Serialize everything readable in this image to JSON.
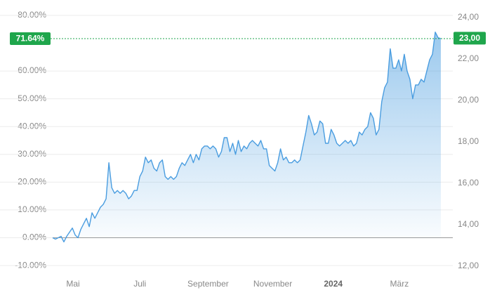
{
  "chart_data": {
    "type": "line",
    "series": [
      {
        "color": "#4a9de0",
        "values": [
          0,
          -0.5,
          0,
          0.5,
          -1.5,
          0.5,
          2,
          3.5,
          1,
          0,
          3,
          5,
          7,
          4,
          9,
          7,
          9,
          11,
          12,
          14,
          27,
          18,
          16,
          17,
          16,
          17,
          16,
          14,
          15,
          17,
          17,
          22,
          24,
          29,
          27,
          28,
          25,
          24,
          27,
          28,
          22,
          21,
          22,
          21,
          22,
          25,
          27,
          26,
          28,
          30,
          27,
          30,
          28,
          32,
          33,
          33,
          32,
          33,
          32,
          29,
          31,
          36,
          36,
          31,
          34,
          30,
          35,
          31,
          33,
          32,
          34,
          35,
          34,
          33,
          35,
          32,
          32,
          26,
          25,
          24,
          27,
          32,
          28,
          29,
          27,
          27,
          28,
          27,
          28,
          33,
          38,
          44,
          41,
          37,
          38,
          42,
          41,
          34,
          34,
          39,
          37,
          34,
          33,
          34,
          35,
          34,
          35,
          33,
          34,
          38,
          37,
          39,
          40,
          45,
          43,
          37,
          39,
          49,
          54,
          56,
          68,
          61,
          61,
          64,
          60,
          66,
          60,
          57,
          50,
          55,
          55,
          57,
          56,
          60,
          64,
          66,
          74,
          72,
          71.64
        ]
      }
    ],
    "xlim": [
      0,
      138
    ],
    "xticks": [
      {
        "value": 7.25,
        "label": "Mai"
      },
      {
        "value": 31,
        "label": "Juli"
      },
      {
        "value": 55.25,
        "label": "September"
      },
      {
        "value": 78.25,
        "label": "November"
      },
      {
        "value": 99.75,
        "label": "2024"
      },
      {
        "value": 123.25,
        "label": "März"
      }
    ],
    "ylim": [
      -12,
      82
    ],
    "yticks": [
      {
        "value": -10,
        "label": "-10.00%"
      },
      {
        "value": 0,
        "label": "0.00%"
      },
      {
        "value": 10,
        "label": "10.00%"
      },
      {
        "value": 20,
        "label": "20.00%"
      },
      {
        "value": 30,
        "label": "30.00%"
      },
      {
        "value": 40,
        "label": "40.00%"
      },
      {
        "value": 50,
        "label": "50.00%"
      },
      {
        "value": 60,
        "label": "60.00%"
      },
      {
        "value": 80,
        "label": "80.00%"
      }
    ],
    "y2lim": [
      11.76,
      24.37
    ],
    "y2ticks": [
      {
        "value": 12,
        "label": "12,00"
      },
      {
        "value": 14,
        "label": "14,00"
      },
      {
        "value": 16,
        "label": "16,00"
      },
      {
        "value": 18,
        "label": "18,00"
      },
      {
        "value": 20,
        "label": "20,00"
      },
      {
        "value": 22,
        "label": "22,00"
      },
      {
        "value": 24,
        "label": "24,00"
      }
    ],
    "markers": [
      {
        "axis": "y",
        "value": 71.64,
        "label": "71.64%",
        "color": "#1fa64c"
      },
      {
        "axis": "y2",
        "value": 23,
        "label": "23,00",
        "color": "#1fa64c"
      }
    ],
    "grid": true
  }
}
